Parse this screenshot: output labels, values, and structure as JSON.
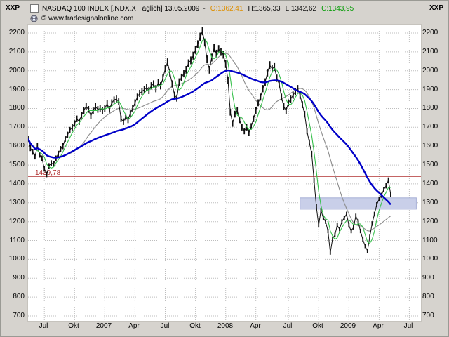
{
  "window": {
    "corner_label_left": "XXP",
    "corner_label_right": "XXP"
  },
  "header": {
    "title": "NASDAQ 100 INDEX [.NDX.X  Täglich]  13.05.2009",
    "separator": "-",
    "open_label": "O:1362,41",
    "high_label": "H:1365,33",
    "low_label": "L:1342,62",
    "close_label": "C:1343,95",
    "copyright": "© www.tradesignalonline.com"
  },
  "colors": {
    "open_text": "#dd8f00",
    "close_text": "#009a00",
    "price": "#101010",
    "ma_fast": "#35c04a",
    "ma_mid": "#8c8c8c",
    "ma_slow": "#0000c8",
    "level_line": "#b03030",
    "zone_fill": "#c9cfe9",
    "zone_border": "#a7afd6",
    "grid": "#bdbdbd",
    "plot_bg": "#ffffff",
    "frame_bg": "#d6d3ce"
  },
  "chart_data": {
    "type": "candlestick-line",
    "title": "NASDAQ 100 INDEX daily",
    "ylim": [
      700,
      2200
    ],
    "y_ticks": [
      700,
      800,
      900,
      1000,
      1100,
      1200,
      1300,
      1400,
      1500,
      1600,
      1700,
      1800,
      1900,
      2000,
      2100,
      2200
    ],
    "x_ticks": [
      {
        "label": "Jul",
        "week": 7
      },
      {
        "label": "Okt",
        "week": 20
      },
      {
        "label": "2007",
        "week": 33
      },
      {
        "label": "Apr",
        "week": 46
      },
      {
        "label": "Jul",
        "week": 59
      },
      {
        "label": "Okt",
        "week": 72
      },
      {
        "label": "2008",
        "week": 85
      },
      {
        "label": "Apr",
        "week": 98
      },
      {
        "label": "Jul",
        "week": 112
      },
      {
        "label": "Okt",
        "week": 125
      },
      {
        "label": "2009",
        "week": 138
      },
      {
        "label": "Apr",
        "week": 151
      },
      {
        "label": "Jul",
        "week": 164
      }
    ],
    "weeks_total": 169,
    "closes": [
      1640,
      1590,
      1570,
      1545,
      1600,
      1555,
      1535,
      1480,
      1450,
      1495,
      1510,
      1505,
      1535,
      1560,
      1585,
      1600,
      1640,
      1660,
      1685,
      1700,
      1720,
      1745,
      1730,
      1765,
      1790,
      1810,
      1795,
      1760,
      1790,
      1810,
      1795,
      1800,
      1790,
      1800,
      1825,
      1795,
      1830,
      1845,
      1850,
      1835,
      1745,
      1730,
      1755,
      1740,
      1775,
      1800,
      1830,
      1860,
      1880,
      1890,
      1900,
      1910,
      1895,
      1920,
      1930,
      1905,
      1935,
      1920,
      1960,
      2010,
      2045,
      1990,
      1930,
      1870,
      1855,
      1940,
      1965,
      1985,
      2005,
      2040,
      2055,
      2080,
      2110,
      2140,
      2180,
      2210,
      2150,
      2060,
      2005,
      2070,
      2120,
      2090,
      2115,
      2100,
      2085,
      2035,
      1950,
      1780,
      1720,
      1770,
      1790,
      1740,
      1700,
      1680,
      1700,
      1670,
      1705,
      1745,
      1790,
      1830,
      1860,
      1905,
      1940,
      1990,
      2030,
      2010,
      2020,
      1960,
      1930,
      1860,
      1810,
      1790,
      1830,
      1850,
      1870,
      1890,
      1905,
      1870,
      1820,
      1770,
      1680,
      1620,
      1560,
      1420,
      1280,
      1180,
      1260,
      1220,
      1200,
      1150,
      1035,
      1110,
      1130,
      1180,
      1160,
      1200,
      1220,
      1240,
      1180,
      1150,
      1170,
      1230,
      1200,
      1150,
      1105,
      1070,
      1045,
      1120,
      1190,
      1240,
      1290,
      1320,
      1340,
      1370,
      1390,
      1420,
      1344
    ],
    "level_line": {
      "value": 1439.78,
      "label": "1439,78"
    },
    "zone": {
      "start_week": 117,
      "end_week": 167,
      "top": 1326,
      "bottom": 1266
    },
    "moving_averages": [
      {
        "name": "fast-green",
        "period": 4,
        "color_key": "ma_fast",
        "width": 1.1
      },
      {
        "name": "mid-gray",
        "period": 18,
        "color_key": "ma_mid",
        "width": 1.1
      },
      {
        "name": "slow-blue",
        "period": 40,
        "color_key": "ma_slow",
        "width": 2.4
      }
    ],
    "grid": true
  }
}
